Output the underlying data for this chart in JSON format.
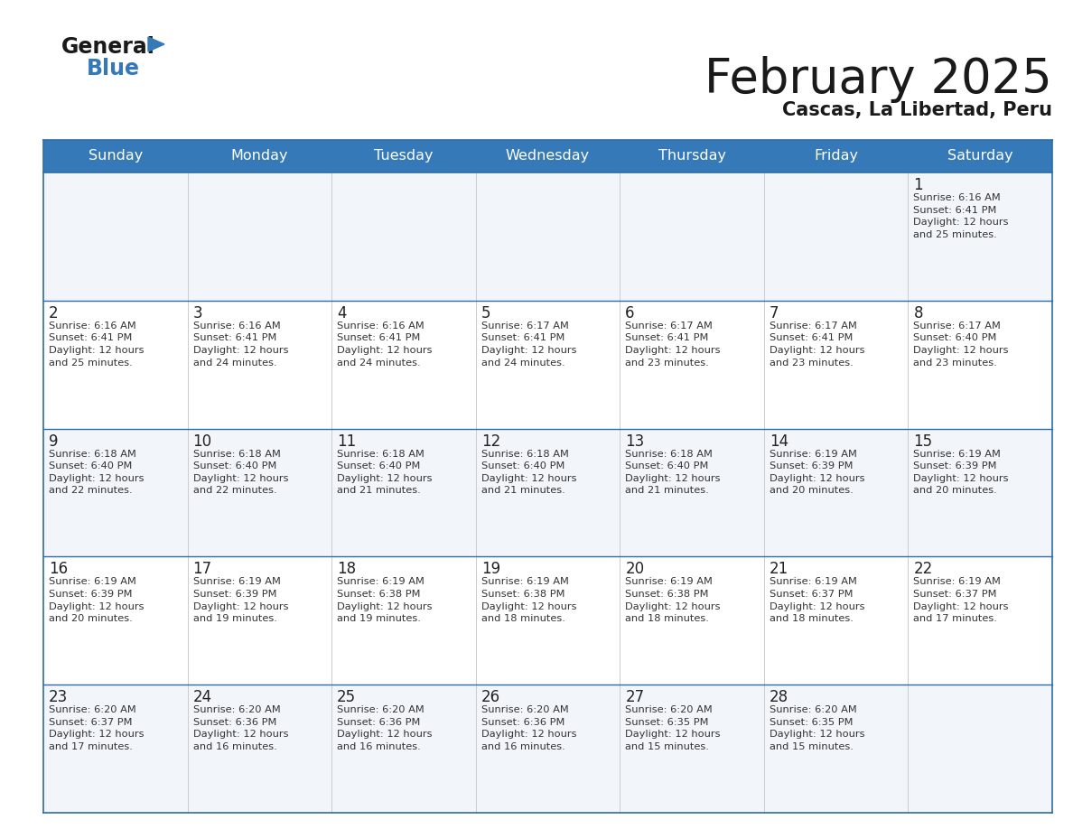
{
  "title": "February 2025",
  "subtitle": "Cascas, La Libertad, Peru",
  "header_bg": "#3579b8",
  "header_text": "#ffffff",
  "cell_bg_odd": "#f2f6fb",
  "cell_bg_even": "#ffffff",
  "border_color": "#2e6da4",
  "sep_line_color": "#2e6da4",
  "vert_line_color": "#cccccc",
  "day_names": [
    "Sunday",
    "Monday",
    "Tuesday",
    "Wednesday",
    "Thursday",
    "Friday",
    "Saturday"
  ],
  "days": [
    {
      "day": 1,
      "col": 6,
      "row": 0,
      "sunrise": "6:16 AM",
      "sunset": "6:41 PM",
      "dl_hours": 12,
      "dl_minutes": 25
    },
    {
      "day": 2,
      "col": 0,
      "row": 1,
      "sunrise": "6:16 AM",
      "sunset": "6:41 PM",
      "dl_hours": 12,
      "dl_minutes": 25
    },
    {
      "day": 3,
      "col": 1,
      "row": 1,
      "sunrise": "6:16 AM",
      "sunset": "6:41 PM",
      "dl_hours": 12,
      "dl_minutes": 24
    },
    {
      "day": 4,
      "col": 2,
      "row": 1,
      "sunrise": "6:16 AM",
      "sunset": "6:41 PM",
      "dl_hours": 12,
      "dl_minutes": 24
    },
    {
      "day": 5,
      "col": 3,
      "row": 1,
      "sunrise": "6:17 AM",
      "sunset": "6:41 PM",
      "dl_hours": 12,
      "dl_minutes": 24
    },
    {
      "day": 6,
      "col": 4,
      "row": 1,
      "sunrise": "6:17 AM",
      "sunset": "6:41 PM",
      "dl_hours": 12,
      "dl_minutes": 23
    },
    {
      "day": 7,
      "col": 5,
      "row": 1,
      "sunrise": "6:17 AM",
      "sunset": "6:41 PM",
      "dl_hours": 12,
      "dl_minutes": 23
    },
    {
      "day": 8,
      "col": 6,
      "row": 1,
      "sunrise": "6:17 AM",
      "sunset": "6:40 PM",
      "dl_hours": 12,
      "dl_minutes": 23
    },
    {
      "day": 9,
      "col": 0,
      "row": 2,
      "sunrise": "6:18 AM",
      "sunset": "6:40 PM",
      "dl_hours": 12,
      "dl_minutes": 22
    },
    {
      "day": 10,
      "col": 1,
      "row": 2,
      "sunrise": "6:18 AM",
      "sunset": "6:40 PM",
      "dl_hours": 12,
      "dl_minutes": 22
    },
    {
      "day": 11,
      "col": 2,
      "row": 2,
      "sunrise": "6:18 AM",
      "sunset": "6:40 PM",
      "dl_hours": 12,
      "dl_minutes": 21
    },
    {
      "day": 12,
      "col": 3,
      "row": 2,
      "sunrise": "6:18 AM",
      "sunset": "6:40 PM",
      "dl_hours": 12,
      "dl_minutes": 21
    },
    {
      "day": 13,
      "col": 4,
      "row": 2,
      "sunrise": "6:18 AM",
      "sunset": "6:40 PM",
      "dl_hours": 12,
      "dl_minutes": 21
    },
    {
      "day": 14,
      "col": 5,
      "row": 2,
      "sunrise": "6:19 AM",
      "sunset": "6:39 PM",
      "dl_hours": 12,
      "dl_minutes": 20
    },
    {
      "day": 15,
      "col": 6,
      "row": 2,
      "sunrise": "6:19 AM",
      "sunset": "6:39 PM",
      "dl_hours": 12,
      "dl_minutes": 20
    },
    {
      "day": 16,
      "col": 0,
      "row": 3,
      "sunrise": "6:19 AM",
      "sunset": "6:39 PM",
      "dl_hours": 12,
      "dl_minutes": 20
    },
    {
      "day": 17,
      "col": 1,
      "row": 3,
      "sunrise": "6:19 AM",
      "sunset": "6:39 PM",
      "dl_hours": 12,
      "dl_minutes": 19
    },
    {
      "day": 18,
      "col": 2,
      "row": 3,
      "sunrise": "6:19 AM",
      "sunset": "6:38 PM",
      "dl_hours": 12,
      "dl_minutes": 19
    },
    {
      "day": 19,
      "col": 3,
      "row": 3,
      "sunrise": "6:19 AM",
      "sunset": "6:38 PM",
      "dl_hours": 12,
      "dl_minutes": 18
    },
    {
      "day": 20,
      "col": 4,
      "row": 3,
      "sunrise": "6:19 AM",
      "sunset": "6:38 PM",
      "dl_hours": 12,
      "dl_minutes": 18
    },
    {
      "day": 21,
      "col": 5,
      "row": 3,
      "sunrise": "6:19 AM",
      "sunset": "6:37 PM",
      "dl_hours": 12,
      "dl_minutes": 18
    },
    {
      "day": 22,
      "col": 6,
      "row": 3,
      "sunrise": "6:19 AM",
      "sunset": "6:37 PM",
      "dl_hours": 12,
      "dl_minutes": 17
    },
    {
      "day": 23,
      "col": 0,
      "row": 4,
      "sunrise": "6:20 AM",
      "sunset": "6:37 PM",
      "dl_hours": 12,
      "dl_minutes": 17
    },
    {
      "day": 24,
      "col": 1,
      "row": 4,
      "sunrise": "6:20 AM",
      "sunset": "6:36 PM",
      "dl_hours": 12,
      "dl_minutes": 16
    },
    {
      "day": 25,
      "col": 2,
      "row": 4,
      "sunrise": "6:20 AM",
      "sunset": "6:36 PM",
      "dl_hours": 12,
      "dl_minutes": 16
    },
    {
      "day": 26,
      "col": 3,
      "row": 4,
      "sunrise": "6:20 AM",
      "sunset": "6:36 PM",
      "dl_hours": 12,
      "dl_minutes": 16
    },
    {
      "day": 27,
      "col": 4,
      "row": 4,
      "sunrise": "6:20 AM",
      "sunset": "6:35 PM",
      "dl_hours": 12,
      "dl_minutes": 15
    },
    {
      "day": 28,
      "col": 5,
      "row": 4,
      "sunrise": "6:20 AM",
      "sunset": "6:35 PM",
      "dl_hours": 12,
      "dl_minutes": 15
    }
  ],
  "num_rows": 5,
  "num_cols": 7
}
